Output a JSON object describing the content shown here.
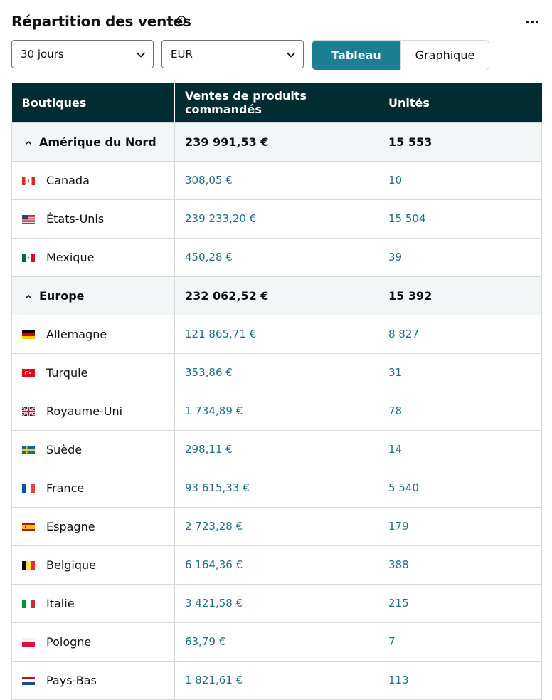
{
  "header": {
    "title": "Répartition des ventes",
    "info_icon": "info-circle-icon",
    "more_icon": "more-horizontal-icon"
  },
  "filters": {
    "period": "30 jours",
    "currency": "EUR"
  },
  "view_toggle": {
    "options": [
      "Tableau",
      "Graphique"
    ],
    "selected": "Tableau"
  },
  "table": {
    "columns": [
      "Boutiques",
      "Ventes de produits commandés",
      "Unités"
    ],
    "regions": [
      {
        "name": "Amérique du Nord",
        "sales": "239 991,53 €",
        "units": "15 553",
        "countries": [
          {
            "name": "Canada",
            "flag": "ca",
            "sales": "308,05 €",
            "units": "10"
          },
          {
            "name": "États-Unis",
            "flag": "us",
            "sales": "239 233,20 €",
            "units": "15 504"
          },
          {
            "name": "Mexique",
            "flag": "mx",
            "sales": "450,28 €",
            "units": "39"
          }
        ]
      },
      {
        "name": "Europe",
        "sales": "232 062,52 €",
        "units": "15 392",
        "countries": [
          {
            "name": "Allemagne",
            "flag": "de",
            "sales": "121 865,71 €",
            "units": "8 827"
          },
          {
            "name": "Turquie",
            "flag": "tr",
            "sales": "353,86 €",
            "units": "31"
          },
          {
            "name": "Royaume-Uni",
            "flag": "gb",
            "sales": "1 734,89 €",
            "units": "78"
          },
          {
            "name": "Suède",
            "flag": "se",
            "sales": "298,11 €",
            "units": "14"
          },
          {
            "name": "France",
            "flag": "fr",
            "sales": "93 615,33 €",
            "units": "5 540"
          },
          {
            "name": "Espagne",
            "flag": "es",
            "sales": "2 723,28 €",
            "units": "179"
          },
          {
            "name": "Belgique",
            "flag": "be",
            "sales": "6 164,36 €",
            "units": "388"
          },
          {
            "name": "Italie",
            "flag": "it",
            "sales": "3 421,58 €",
            "units": "215"
          },
          {
            "name": "Pologne",
            "flag": "pl",
            "sales": "63,79 €",
            "units": "7"
          },
          {
            "name": "Pays-Bas",
            "flag": "nl",
            "sales": "1 821,61 €",
            "units": "113"
          }
        ]
      }
    ]
  },
  "colors": {
    "header_bg": "#012d32",
    "accent": "#1b7f93",
    "link_value": "#1f6f80",
    "region_bg": "#f3f6f7"
  }
}
